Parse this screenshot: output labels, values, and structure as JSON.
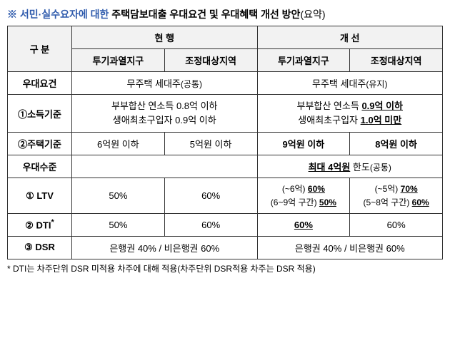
{
  "title": {
    "lead": "※ 서민·실수요자에 대한",
    "rest": "주택담보대출 우대요건 및 우대혜택 개선 방안",
    "paren": "(요약)"
  },
  "head": {
    "div": "구 분",
    "current": "현 행",
    "improved": "개 선",
    "zoneA": "투기과열지구",
    "zoneB": "조정대상지역"
  },
  "rows": {
    "req": {
      "label": "우대요건",
      "current": {
        "main": "무주택 세대주",
        "paren": "(공통)"
      },
      "improved": {
        "main": "무주택 세대주",
        "paren": "(유지)"
      }
    },
    "income": {
      "label": "①소득기준",
      "current_l1_a": "부부합산 연소득 ",
      "current_l1_b": "0.8억 이하",
      "current_l2_a": "생애최초구입자 ",
      "current_l2_b": "0.9억 이하",
      "improved_l1_a": "부부합산 연소득 ",
      "improved_l1_b": "0.9억 이하",
      "improved_l2_a": "생애최초구입자 ",
      "improved_l2_b": "1.0억 미만"
    },
    "house": {
      "label": "②주택기준",
      "cA": "6억원 이하",
      "cB": "5억원 이하",
      "iA": "9억원 이하",
      "iB": "8억원 이하"
    },
    "level": {
      "label": "우대수준",
      "current": "",
      "improved_u": "최대 4억원",
      "improved_rest": " 한도",
      "improved_paren": "(공통)"
    },
    "ltv": {
      "label": "① LTV",
      "cA": "50%",
      "cB": "60%",
      "iA_l1a": "(~6억) ",
      "iA_l1b": "60%",
      "iA_l2a": "(6~9억 구간) ",
      "iA_l2b": "50%",
      "iB_l1a": "(~5억) ",
      "iB_l1b": "70%",
      "iB_l2a": "(5~8억 구간) ",
      "iB_l2b": "60%"
    },
    "dti": {
      "label": "② DTI",
      "star": "*",
      "cA": "50%",
      "cB": "60%",
      "iA": "60%",
      "iB": "60%"
    },
    "dsr": {
      "label": "③ DSR",
      "text": "은행권 40% / 비은행권 60%"
    }
  },
  "note": "* DTI는 차주단위 DSR 미적용 차주에 대해 적용(차주단위 DSR적용 차주는 DSR 적용)"
}
